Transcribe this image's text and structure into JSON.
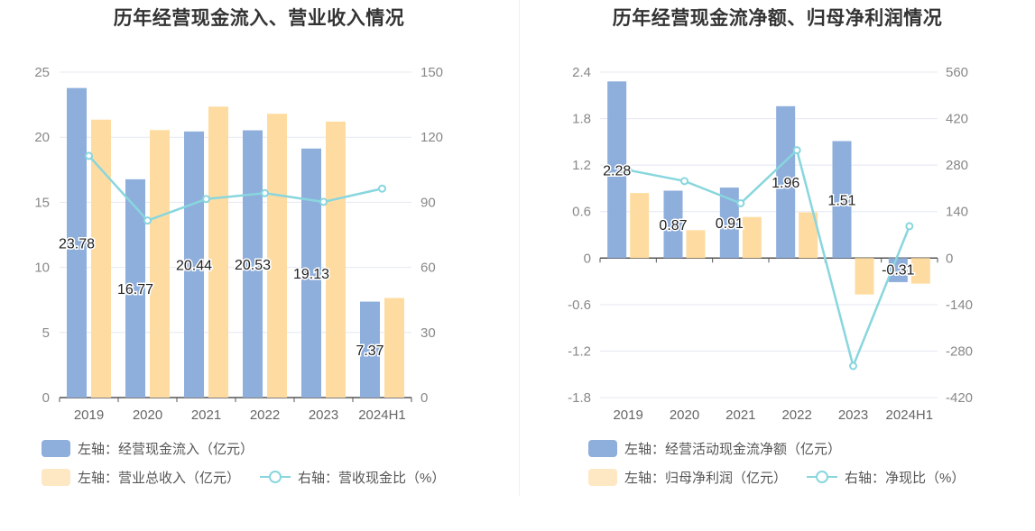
{
  "colors": {
    "primary_bar": "#8eaedb",
    "secondary_bar": "#fedca1",
    "line": "#88d6de",
    "grid": "#e4e8f2",
    "axis": "#555555",
    "label": "#888888"
  },
  "chart_data": [
    {
      "type": "bar",
      "title": "历年经营现金流入、营业收入情况",
      "categories": [
        "2019",
        "2020",
        "2021",
        "2022",
        "2023",
        "2024H1"
      ],
      "left_axis": {
        "ylim": [
          0,
          25
        ],
        "ticks": [
          "0",
          "5",
          "10",
          "15",
          "20",
          "25"
        ]
      },
      "right_axis": {
        "ylim": [
          0,
          150
        ],
        "ticks": [
          "0",
          "30",
          "60",
          "90",
          "120",
          "150"
        ]
      },
      "grid": true,
      "legend_position": "bottom-left",
      "series": [
        {
          "name": "左轴：经营现金流入（亿元）",
          "axis": "left",
          "kind": "bar",
          "values": [
            23.78,
            16.77,
            20.44,
            20.53,
            19.13,
            7.37
          ],
          "labels": [
            "23.78",
            "16.77",
            "20.44",
            "20.53",
            "19.13",
            "7.37"
          ]
        },
        {
          "name": "左轴：营业总收入（亿元）",
          "axis": "left",
          "kind": "bar",
          "values": [
            21.35,
            20.55,
            22.35,
            21.8,
            21.2,
            7.65
          ]
        },
        {
          "name": "右轴：营收现金比（%）",
          "axis": "right",
          "kind": "line",
          "values": [
            111.4,
            81.6,
            91.5,
            94.2,
            90.2,
            96.3
          ]
        }
      ]
    },
    {
      "type": "bar",
      "title": "历年经营现金流净额、归母净利润情况",
      "categories": [
        "2019",
        "2020",
        "2021",
        "2022",
        "2023",
        "2024H1"
      ],
      "left_axis": {
        "ylim": [
          -1.8,
          2.4
        ],
        "ticks": [
          "-1.8",
          "-1.2",
          "-0.6",
          "0",
          "0.6",
          "1.2",
          "1.8",
          "2.4"
        ]
      },
      "right_axis": {
        "ylim": [
          -420,
          560
        ],
        "ticks": [
          "-420",
          "-280",
          "-140",
          "0",
          "140",
          "280",
          "420",
          "560"
        ]
      },
      "grid": true,
      "legend_position": "bottom-left",
      "series": [
        {
          "name": "左轴：经营活动现金流净额（亿元）",
          "axis": "left",
          "kind": "bar",
          "values": [
            2.28,
            0.87,
            0.91,
            1.96,
            1.51,
            -0.31
          ],
          "labels": [
            "2.28",
            "0.87",
            "0.91",
            "1.96",
            "1.51",
            "-0.31"
          ]
        },
        {
          "name": "左轴：归母净利润（亿元）",
          "axis": "left",
          "kind": "bar",
          "values": [
            0.84,
            0.36,
            0.53,
            0.59,
            -0.47,
            -0.33
          ]
        },
        {
          "name": "右轴：净现比（%）",
          "axis": "right",
          "kind": "line",
          "values": [
            265,
            232,
            165,
            325,
            -325,
            96
          ]
        }
      ]
    }
  ]
}
